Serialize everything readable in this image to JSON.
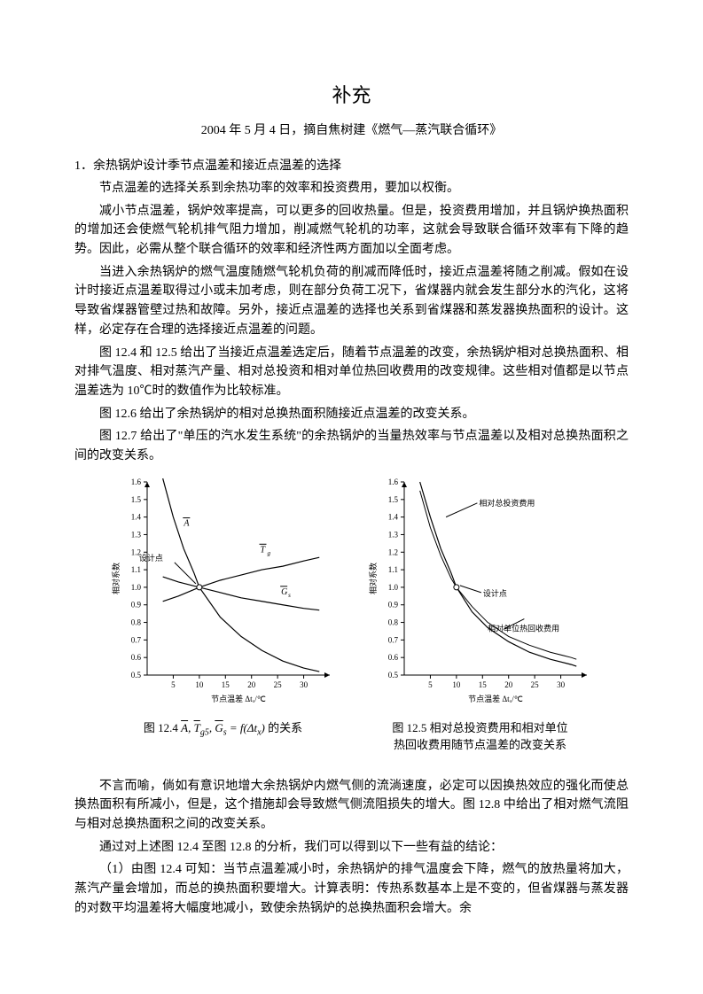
{
  "title": "补充",
  "subtitle": "2004 年 5 月 4 日，摘自焦树建《燃气—蒸汽联合循环》",
  "section_head": "1．余热锅炉设计季节点温差和接近点温差的选择",
  "paragraphs": {
    "p1": "节点温差的选择关系到余热功率的效率和投资费用，要加以权衡。",
    "p2": "减小节点温差，锅炉效率提高，可以更多的回收热量。但是，投资费用增加，并且锅炉换热面积的增加还会使燃气轮机排气阻力增加，削减燃气轮机的功率，这就会导致联合循环效率有下降的趋势。因此，必需从整个联合循环的效率和经济性两方面加以全面考虑。",
    "p3": "当进入余热锅炉的燃气温度随燃气轮机负荷的削减而降低时，接近点温差将随之削减。假如在设计时接近点温差取得过小或未加考虑，则在部分负荷工况下，省煤器内就会发生部分水的汽化，这将导致省煤器管壁过热和故障。另外，接近点温差的选择也关系到省煤器和蒸发器换热面积的设计。这样，必定存在合理的选择接近点温差的问题。",
    "p4": "图 12.4 和 12.5 给出了当接近点温差选定后，随着节点温差的改变，余热锅炉相对总换热面积、相对排气温度、相对蒸汽产量、相对总投资和相对单位热回收费用的改变规律。这些相对值都是以节点温差选为 10℃时的数值作为比较标准。",
    "p5": "图 12.6 给出了余热锅炉的相对总换热面积随接近点温差的改变关系。",
    "p6": "图 12.7 给出了\"单压的汽水发生系统\"的余热锅炉的当量热效率与节点温差以及相对总换热面积之间的改变关系。",
    "p7": "不言而喻，倘如有意识地增大余热锅炉内燃气侧的流淌速度，必定可以因换热效应的强化而使总换热面积有所减小，但是，这个措施却会导致燃气侧流阻损失的增大。图 12.8 中给出了相对燃气流阻与相对总换热面积之间的改变关系。",
    "p8": "通过对上述图 12.4 至图 12.8 的分析，我们可以得到以下一些有益的结论：",
    "p9": "（1）由图 12.4 可知：当节点温差减小时，余热锅炉的排气温度会下降，燃气的放热量将加大，蒸汽产量会增加，而总的换热面积要增大。计算表明：传热系数基本上是不变的，但省煤器与蒸发器的对数平均温差将大幅度地减小，致使余热锅炉的总换热面积会增大。余"
  },
  "fig124": {
    "type": "line",
    "ylabel": "相对系数",
    "xlabel": "节点温差 Δtₓ/℃",
    "xticks": [
      5,
      10,
      15,
      20,
      25,
      30
    ],
    "yticks": [
      0.5,
      0.6,
      0.7,
      0.8,
      0.9,
      1.0,
      1.1,
      1.2,
      1.3,
      1.4,
      1.5,
      1.6
    ],
    "xlim": [
      0,
      35
    ],
    "ylim": [
      0.5,
      1.6
    ],
    "design_point_label": "设计点",
    "design_x": 10,
    "design_y": 1.0,
    "curve_A": [
      [
        3,
        1.62
      ],
      [
        5,
        1.4
      ],
      [
        7,
        1.22
      ],
      [
        9,
        1.08
      ],
      [
        10,
        1.0
      ],
      [
        14,
        0.83
      ],
      [
        18,
        0.72
      ],
      [
        22,
        0.64
      ],
      [
        26,
        0.58
      ],
      [
        30,
        0.54
      ],
      [
        33,
        0.52
      ]
    ],
    "curve_Tg": [
      [
        3,
        0.92
      ],
      [
        6,
        0.95
      ],
      [
        10,
        1.0
      ],
      [
        14,
        1.04
      ],
      [
        18,
        1.07
      ],
      [
        22,
        1.1
      ],
      [
        26,
        1.12
      ],
      [
        30,
        1.15
      ],
      [
        33,
        1.17
      ]
    ],
    "curve_Gs": [
      [
        3,
        1.06
      ],
      [
        6,
        1.03
      ],
      [
        10,
        1.0
      ],
      [
        14,
        0.97
      ],
      [
        18,
        0.94
      ],
      [
        22,
        0.92
      ],
      [
        26,
        0.9
      ],
      [
        30,
        0.88
      ],
      [
        33,
        0.87
      ]
    ],
    "label_A": "A",
    "label_Tg": "Tg",
    "label_Gs": "Gs",
    "font_size": 9,
    "axis_color": "#000000",
    "bg": "#ffffff"
  },
  "fig125": {
    "type": "line",
    "ylabel": "相对系数",
    "xlabel": "节点温差 Δtₓ/℃",
    "xticks": [
      5,
      10,
      15,
      20,
      25,
      30
    ],
    "yticks": [
      0.5,
      0.6,
      0.7,
      0.8,
      0.9,
      1.0,
      1.1,
      1.2,
      1.3,
      1.4,
      1.5,
      1.6
    ],
    "xlim": [
      0,
      35
    ],
    "ylim": [
      0.5,
      1.6
    ],
    "design_point_label": "设计点",
    "design_x": 10,
    "design_y": 1.0,
    "curve_invest": [
      [
        3,
        1.6
      ],
      [
        5,
        1.4
      ],
      [
        7,
        1.22
      ],
      [
        9,
        1.08
      ],
      [
        10,
        1.0
      ],
      [
        13,
        0.86
      ],
      [
        16,
        0.77
      ],
      [
        20,
        0.69
      ],
      [
        24,
        0.63
      ],
      [
        28,
        0.59
      ],
      [
        32,
        0.56
      ],
      [
        33,
        0.55
      ]
    ],
    "curve_unit": [
      [
        3,
        1.55
      ],
      [
        5,
        1.34
      ],
      [
        7,
        1.18
      ],
      [
        9,
        1.05
      ],
      [
        10,
        1.0
      ],
      [
        13,
        0.89
      ],
      [
        16,
        0.8
      ],
      [
        20,
        0.72
      ],
      [
        24,
        0.67
      ],
      [
        28,
        0.63
      ],
      [
        32,
        0.6
      ],
      [
        33,
        0.59
      ]
    ],
    "label_invest": "相对总投资费用",
    "label_unit": "相对单位热回收费用",
    "font_size": 9,
    "axis_color": "#000000",
    "bg": "#ffffff"
  },
  "caption124_pre": "图 12.4   ",
  "caption124_post": "   的关系",
  "caption125_l1": "图 12.5  相对总投资费用和相对单位",
  "caption125_l2": "热回收费用随节点温差的改变关系"
}
